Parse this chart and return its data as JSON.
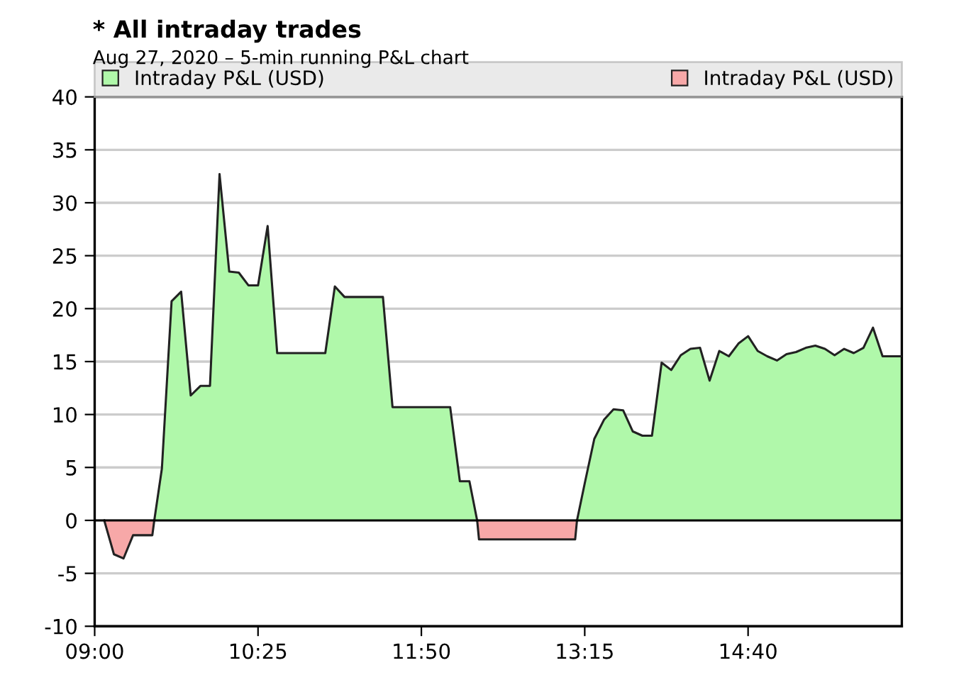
{
  "chart_data": {
    "type": "area",
    "title": "* All intraday trades",
    "subtitle": "Aug 27, 2020 – 5-min running P&L chart",
    "series": [
      {
        "name": "Intraday P&L (USD)",
        "color": "#b0f8aa",
        "x": [
          9.517,
          9.583,
          9.667,
          9.75,
          9.833,
          9.917,
          10.0,
          10.083,
          10.167,
          10.25,
          10.333,
          10.417,
          10.5,
          10.583,
          11.0,
          11.083,
          11.167,
          11.5,
          11.583,
          12.083,
          12.167,
          12.25,
          12.317,
          12.8,
          13.183,
          13.25,
          13.333,
          13.417,
          13.5,
          13.583,
          13.667,
          13.75,
          13.833,
          13.917,
          14.0,
          14.083,
          14.167,
          14.25,
          14.333,
          14.417,
          14.5,
          14.583,
          14.667,
          14.75,
          14.833,
          14.917,
          15.0,
          15.083,
          15.167,
          15.25,
          15.333,
          15.417,
          15.5,
          15.583,
          15.667,
          15.75,
          15.833,
          15.917,
          16.0
        ],
        "values": [
          0,
          4.9,
          20.7,
          21.6,
          11.8,
          12.7,
          12.7,
          32.7,
          23.5,
          23.4,
          22.2,
          22.2,
          27.8,
          15.8,
          15.8,
          22.1,
          21.1,
          21.1,
          10.7,
          10.7,
          3.7,
          3.7,
          0,
          null,
          0,
          3.5,
          7.7,
          9.5,
          10.5,
          10.4,
          8.4,
          8.0,
          8.0,
          14.9,
          14.2,
          15.6,
          16.2,
          16.3,
          13.2,
          16.0,
          15.5,
          16.7,
          17.4,
          16.0,
          15.5,
          15.1,
          15.7,
          15.9,
          16.3,
          16.5,
          16.2,
          15.6,
          16.2,
          15.8,
          16.3,
          18.2,
          15.5,
          15.5,
          15.5
        ]
      },
      {
        "name": "Intraday P&L (USD)",
        "color": "#f7a8a8",
        "x": [
          9.083,
          9.167,
          9.25,
          9.333,
          9.5,
          9.517,
          10.0,
          12.317,
          12.333,
          13.167,
          13.183
        ],
        "values": [
          0,
          -3.2,
          -3.6,
          -1.4,
          -1.4,
          0,
          null,
          0,
          -1.8,
          -1.8,
          0
        ]
      }
    ],
    "xlim": [
      9,
      16
    ],
    "xticks": [
      {
        "value": 9,
        "label": "09:00"
      },
      {
        "value": 10.4167,
        "label": "10:25"
      },
      {
        "value": 11.8333,
        "label": "11:50"
      },
      {
        "value": 13.25,
        "label": "13:15"
      },
      {
        "value": 14.6667,
        "label": "14:40"
      }
    ],
    "ylim": [
      -10,
      40
    ],
    "yticks": [
      -10,
      -5,
      0,
      5,
      10,
      15,
      20,
      25,
      30,
      35,
      40
    ],
    "ref_lines": [
      {
        "axis": "y",
        "value": 0,
        "color": "#000000"
      }
    ],
    "grid": "y",
    "legend": "top",
    "line_style": "solid"
  }
}
